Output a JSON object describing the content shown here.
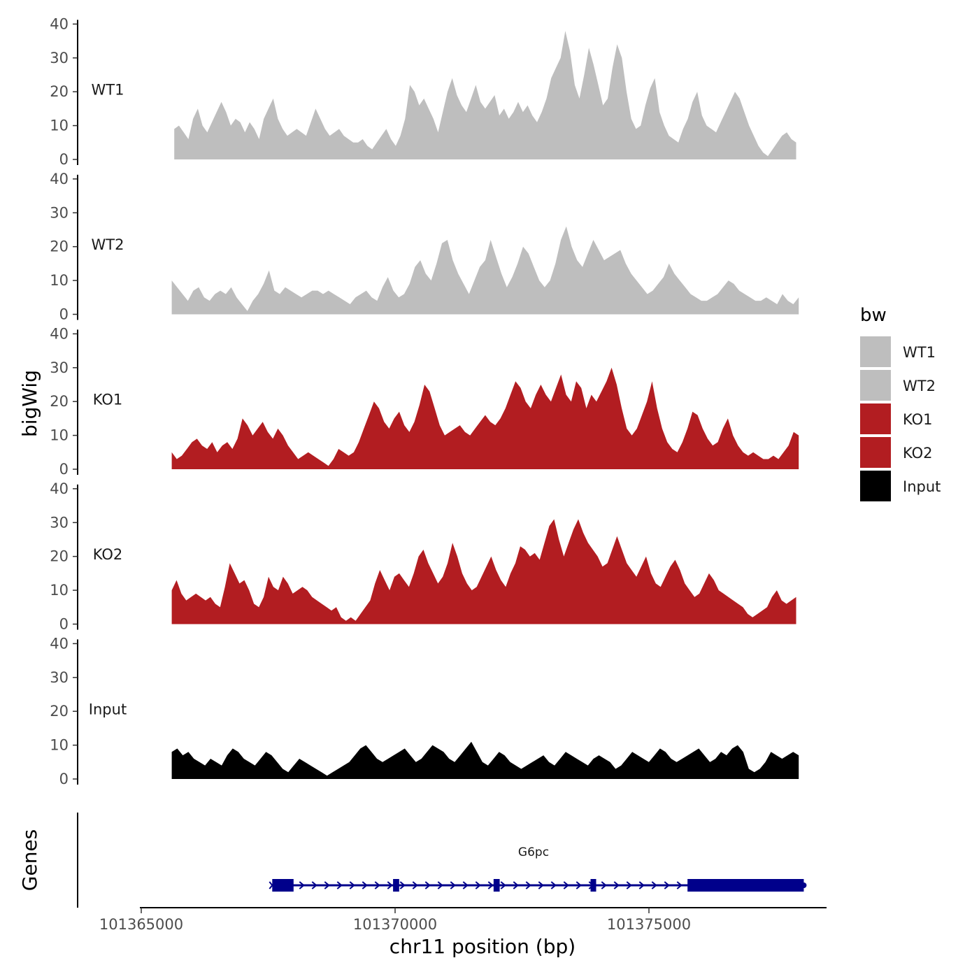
{
  "chart_data": {
    "type": "area",
    "ylabel": "bigWig",
    "xlabel": "chr11 position (bp)",
    "xlim": [
      101365000,
      101378700
    ],
    "ylim": [
      0,
      40
    ],
    "yticks": [
      0,
      10,
      20,
      30,
      40
    ],
    "xticks": [
      101365000,
      101370000,
      101375000
    ],
    "xtick_labels": [
      "101365000",
      "101370000",
      "101375000"
    ],
    "colors": {
      "WT": "#bebebe",
      "KO": "#b21d21",
      "Input": "#000000",
      "gene": "#00008b"
    },
    "tracks": [
      {
        "name": "WT1",
        "color": "#bebebe",
        "start": 101365650,
        "end": 101377900,
        "values": [
          9,
          10,
          8,
          6,
          12,
          15,
          10,
          8,
          11,
          14,
          17,
          14,
          10,
          12,
          11,
          8,
          11,
          9,
          6,
          12,
          15,
          18,
          12,
          9,
          7,
          8,
          9,
          8,
          7,
          11,
          15,
          12,
          9,
          7,
          8,
          9,
          7,
          6,
          5,
          5,
          6,
          4,
          3,
          5,
          7,
          9,
          6,
          4,
          7,
          12,
          22,
          20,
          16,
          18,
          15,
          12,
          8,
          14,
          20,
          24,
          19,
          16,
          14,
          18,
          22,
          17,
          15,
          17,
          19,
          13,
          15,
          12,
          14,
          17,
          14,
          16,
          13,
          11,
          14,
          18,
          24,
          27,
          30,
          38,
          32,
          22,
          18,
          25,
          33,
          28,
          22,
          16,
          18,
          27,
          34,
          30,
          20,
          12,
          9,
          10,
          16,
          21,
          24,
          14,
          10,
          7,
          6,
          5,
          9,
          12,
          17,
          20,
          13,
          10,
          9,
          8,
          11,
          14,
          17,
          20,
          18,
          14,
          10,
          7,
          4,
          2,
          1,
          3,
          5,
          7,
          8,
          6,
          5
        ]
      },
      {
        "name": "WT2",
        "color": "#bebebe",
        "start": 101365600,
        "end": 101377950,
        "values": [
          10,
          8,
          6,
          4,
          7,
          8,
          5,
          4,
          6,
          7,
          6,
          8,
          5,
          3,
          1,
          4,
          6,
          9,
          13,
          7,
          6,
          8,
          7,
          6,
          5,
          6,
          7,
          7,
          6,
          7,
          6,
          5,
          4,
          3,
          5,
          6,
          7,
          5,
          4,
          8,
          11,
          7,
          5,
          6,
          9,
          14,
          16,
          12,
          10,
          15,
          21,
          22,
          16,
          12,
          9,
          6,
          10,
          14,
          16,
          22,
          17,
          12,
          8,
          11,
          15,
          20,
          18,
          14,
          10,
          8,
          10,
          15,
          22,
          26,
          20,
          16,
          14,
          18,
          22,
          19,
          16,
          17,
          18,
          19,
          15,
          12,
          10,
          8,
          6,
          7,
          9,
          11,
          15,
          12,
          10,
          8,
          6,
          5,
          4,
          4,
          5,
          6,
          8,
          10,
          9,
          7,
          6,
          5,
          4,
          4,
          5,
          4,
          3,
          6,
          4,
          3,
          5
        ]
      },
      {
        "name": "KO1",
        "color": "#b21d21",
        "start": 101365600,
        "end": 101377950,
        "values": [
          5,
          3,
          4,
          6,
          8,
          9,
          7,
          6,
          8,
          5,
          7,
          8,
          6,
          9,
          15,
          13,
          10,
          12,
          14,
          11,
          9,
          12,
          10,
          7,
          5,
          3,
          4,
          5,
          4,
          3,
          2,
          1,
          3,
          6,
          5,
          4,
          5,
          8,
          12,
          16,
          20,
          18,
          14,
          12,
          15,
          17,
          13,
          11,
          14,
          19,
          25,
          23,
          18,
          13,
          10,
          11,
          12,
          13,
          11,
          10,
          12,
          14,
          16,
          14,
          13,
          15,
          18,
          22,
          26,
          24,
          20,
          18,
          22,
          25,
          22,
          20,
          24,
          28,
          22,
          20,
          26,
          24,
          18,
          22,
          20,
          23,
          26,
          30,
          25,
          18,
          12,
          10,
          12,
          16,
          20,
          26,
          18,
          12,
          8,
          6,
          5,
          8,
          12,
          17,
          16,
          12,
          9,
          7,
          8,
          12,
          15,
          10,
          7,
          5,
          4,
          5,
          4,
          3,
          3,
          4,
          3,
          5,
          7,
          11,
          10
        ]
      },
      {
        "name": "KO2",
        "color": "#b21d21",
        "start": 101365600,
        "end": 101377900,
        "values": [
          10,
          13,
          9,
          7,
          8,
          9,
          8,
          7,
          8,
          6,
          5,
          11,
          18,
          15,
          12,
          13,
          10,
          6,
          5,
          8,
          14,
          11,
          10,
          14,
          12,
          9,
          10,
          11,
          10,
          8,
          7,
          6,
          5,
          4,
          5,
          2,
          1,
          2,
          1,
          3,
          5,
          7,
          12,
          16,
          13,
          10,
          14,
          15,
          13,
          11,
          15,
          20,
          22,
          18,
          15,
          12,
          14,
          18,
          24,
          20,
          15,
          12,
          10,
          11,
          14,
          17,
          20,
          16,
          13,
          11,
          15,
          18,
          23,
          22,
          20,
          21,
          19,
          24,
          29,
          31,
          25,
          20,
          24,
          28,
          31,
          27,
          24,
          22,
          20,
          17,
          18,
          22,
          26,
          22,
          18,
          16,
          14,
          17,
          20,
          15,
          12,
          11,
          14,
          17,
          19,
          16,
          12,
          10,
          8,
          9,
          12,
          15,
          13,
          10,
          9,
          8,
          7,
          6,
          5,
          3,
          2,
          3,
          4,
          5,
          8,
          10,
          7,
          6,
          7,
          8
        ]
      },
      {
        "name": "Input",
        "color": "#000000",
        "start": 101365600,
        "end": 101377950,
        "values": [
          8,
          9,
          7,
          8,
          6,
          5,
          4,
          6,
          5,
          4,
          7,
          9,
          8,
          6,
          5,
          4,
          6,
          8,
          7,
          5,
          3,
          2,
          4,
          6,
          5,
          4,
          3,
          2,
          1,
          2,
          3,
          4,
          5,
          7,
          9,
          10,
          8,
          6,
          5,
          6,
          7,
          8,
          9,
          7,
          5,
          6,
          8,
          10,
          9,
          8,
          6,
          5,
          7,
          9,
          11,
          8,
          5,
          4,
          6,
          8,
          7,
          5,
          4,
          3,
          4,
          5,
          6,
          7,
          5,
          4,
          6,
          8,
          7,
          6,
          5,
          4,
          6,
          7,
          6,
          5,
          3,
          4,
          6,
          8,
          7,
          6,
          5,
          7,
          9,
          8,
          6,
          5,
          6,
          7,
          8,
          9,
          7,
          5,
          6,
          8,
          7,
          9,
          10,
          8,
          3,
          2,
          3,
          5,
          8,
          7,
          6,
          7,
          8,
          7
        ]
      }
    ],
    "legend": {
      "title": "bw",
      "position": "right",
      "entries": [
        {
          "label": "WT1",
          "color": "#bebebe"
        },
        {
          "label": "WT2",
          "color": "#bebebe"
        },
        {
          "label": "KO1",
          "color": "#b21d21"
        },
        {
          "label": "KO2",
          "color": "#b21d21"
        },
        {
          "label": "Input",
          "color": "#000000"
        }
      ]
    },
    "genes_track": {
      "label": "Genes",
      "gene": {
        "name": "G6pc",
        "strand": "+",
        "start": 101367580,
        "end": 101378050,
        "exons": [
          [
            101367580,
            101368000
          ],
          [
            101369960,
            101370080
          ],
          [
            101371940,
            101372060
          ],
          [
            101373850,
            101373960
          ],
          [
            101375760,
            101378050
          ]
        ]
      }
    }
  }
}
